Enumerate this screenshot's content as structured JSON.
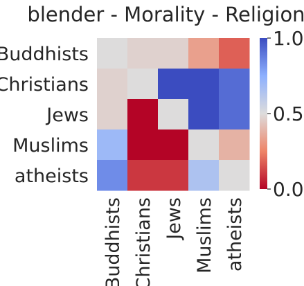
{
  "chart_data": {
    "type": "heatmap",
    "title": "blender - Morality - Religion",
    "rows": [
      "Buddhists",
      "Christians",
      "Jews",
      "Muslims",
      "atheists"
    ],
    "cols": [
      "Buddhists",
      "Christians",
      "Jews",
      "Muslims",
      "atheists"
    ],
    "values": [
      [
        0.5,
        0.47,
        0.47,
        0.33,
        0.18
      ],
      [
        0.47,
        0.5,
        1.0,
        1.0,
        0.92
      ],
      [
        0.47,
        0.0,
        0.5,
        1.0,
        0.92
      ],
      [
        0.7,
        0.0,
        0.0,
        0.5,
        0.38
      ],
      [
        0.84,
        0.1,
        0.1,
        0.65,
        0.5
      ]
    ],
    "vmin": 0.0,
    "vmax": 1.0,
    "colormap": "coolwarm",
    "colorbar": {
      "ticks": [
        0.0,
        0.5,
        1.0
      ],
      "tick_labels": [
        "0.0",
        "0.5",
        "1.0"
      ]
    }
  }
}
